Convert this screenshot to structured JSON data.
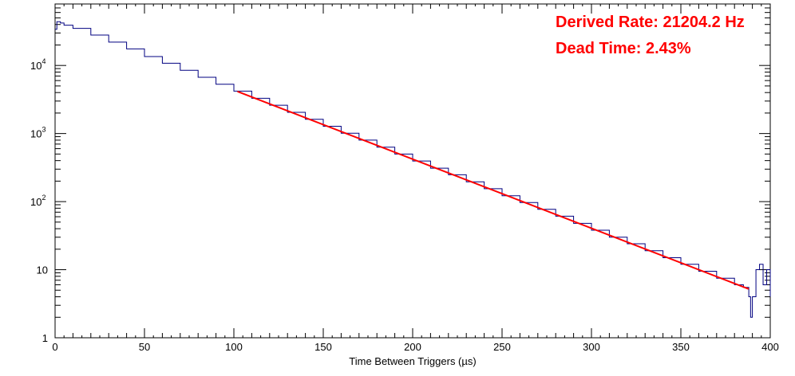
{
  "chart_data": {
    "type": "line",
    "title": "",
    "xlabel": "Time Between Triggers (µs)",
    "ylabel": "",
    "xlim": [
      0,
      400
    ],
    "ylim": [
      1,
      80000
    ],
    "y_scale": "log",
    "grid": false,
    "x_ticks": [
      "0",
      "50",
      "100",
      "150",
      "200",
      "250",
      "300",
      "350",
      "400"
    ],
    "y_ticks": [
      {
        "base": "1",
        "exp": ""
      },
      {
        "base": "10",
        "exp": ""
      },
      {
        "base": "10",
        "exp": "2"
      },
      {
        "base": "10",
        "exp": "3"
      },
      {
        "base": "10",
        "exp": "4"
      }
    ],
    "annotations": [
      "Derived Rate: 21204.2 Hz",
      "Dead Time: 2.43%"
    ],
    "annotation_color": "#ff0000",
    "series": [
      {
        "kind": "histogram",
        "color": "#000080",
        "points": [
          [
            0,
            34000
          ],
          [
            1,
            44000
          ],
          [
            3,
            42000
          ],
          [
            5,
            39000
          ],
          [
            10,
            35000
          ],
          [
            20,
            28000
          ],
          [
            30,
            22000
          ],
          [
            40,
            17500
          ],
          [
            50,
            13500
          ],
          [
            60,
            10800
          ],
          [
            70,
            8500
          ],
          [
            80,
            6700
          ],
          [
            90,
            5300
          ],
          [
            100,
            4200
          ],
          [
            110,
            3300
          ],
          [
            120,
            2600
          ],
          [
            130,
            2050
          ],
          [
            140,
            1620
          ],
          [
            150,
            1280
          ],
          [
            160,
            1010
          ],
          [
            170,
            800
          ],
          [
            180,
            630
          ],
          [
            190,
            500
          ],
          [
            200,
            395
          ],
          [
            210,
            310
          ],
          [
            220,
            248
          ],
          [
            230,
            195
          ],
          [
            240,
            155
          ],
          [
            250,
            122
          ],
          [
            260,
            97
          ],
          [
            270,
            77
          ],
          [
            280,
            61
          ],
          [
            290,
            48
          ],
          [
            300,
            38
          ],
          [
            310,
            30
          ],
          [
            320,
            24
          ],
          [
            330,
            19
          ],
          [
            340,
            15
          ],
          [
            350,
            12
          ],
          [
            360,
            9.5
          ],
          [
            370,
            7.5
          ],
          [
            380,
            6
          ],
          [
            385,
            5.5
          ],
          [
            388,
            4
          ],
          [
            389,
            2
          ],
          [
            390,
            4
          ],
          [
            392,
            10
          ],
          [
            394,
            12
          ],
          [
            396,
            6
          ],
          [
            398,
            10
          ],
          [
            400,
            4
          ]
        ]
      },
      {
        "kind": "fit",
        "color": "#ff0000",
        "x": [
          102,
          388
        ],
        "y": [
          4150,
          5.2
        ]
      }
    ]
  }
}
